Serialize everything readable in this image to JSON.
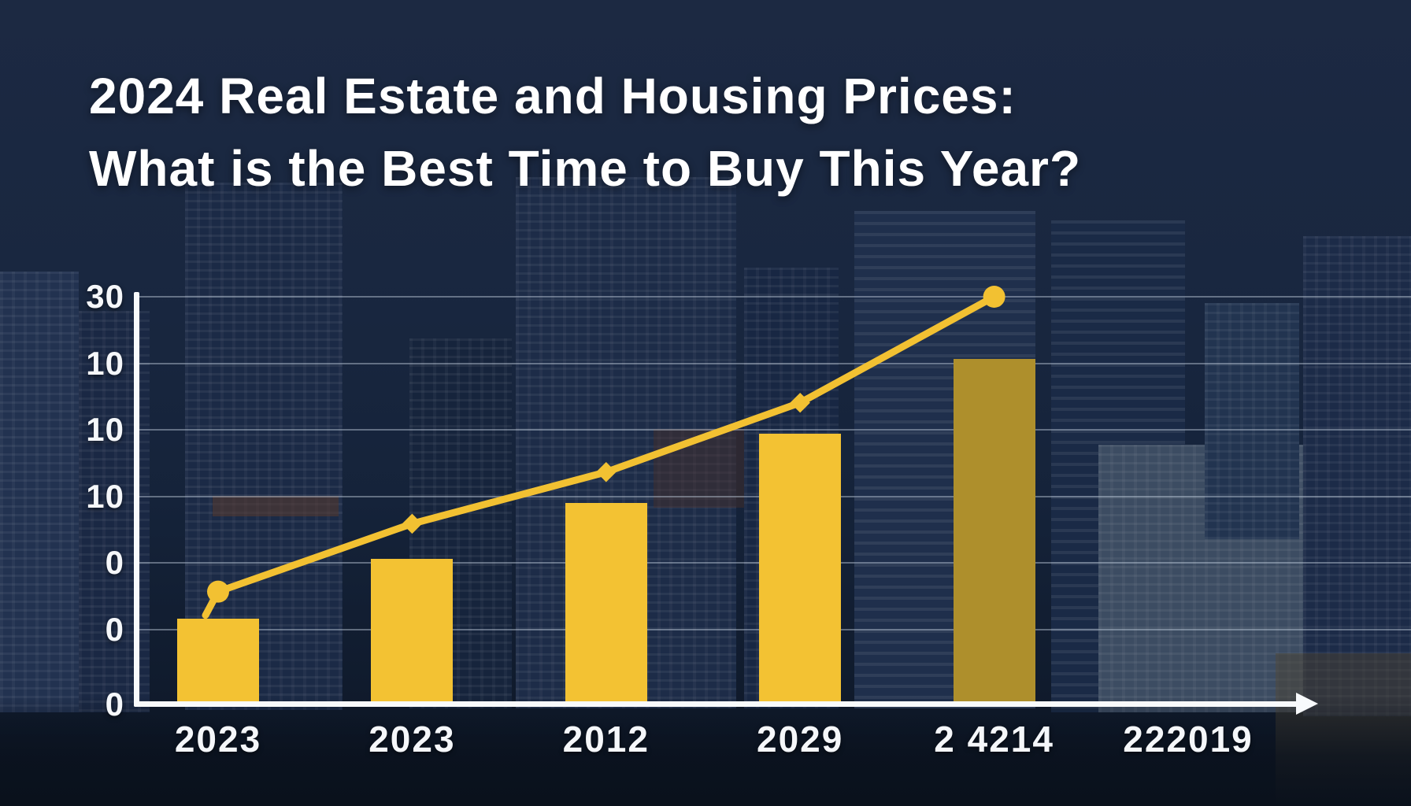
{
  "title": {
    "line1": "2024 Real Estate and Housing Prices:",
    "line2": "What is the Best Time to Buy This Year?"
  },
  "chart_data": {
    "type": "bar+line",
    "title": "2024 Real Estate and Housing Prices: What is the Best Time to Buy This Year?",
    "categories": [
      "2023",
      "2023",
      "2012",
      "2029",
      "2 4214",
      "222019"
    ],
    "series": [
      {
        "name": "housing-price-bars",
        "type": "bar",
        "values": [
          6.2,
          10.6,
          14.7,
          19.8,
          25.3,
          null
        ]
      },
      {
        "name": "price-trend-line",
        "type": "line",
        "values": [
          8.3,
          13.3,
          17.1,
          22.2,
          30.0,
          null
        ]
      }
    ],
    "xlabel": "",
    "ylabel": "",
    "ylim": [
      0,
      30
    ],
    "y_tick_labels": [
      "30",
      "10",
      "10",
      "10",
      "0",
      "0",
      "0"
    ],
    "grid": true,
    "legend": "none",
    "bar_colors": [
      "#f3c233",
      "#f3c233",
      "#f3c233",
      "#f3c233",
      "#ae8f2c"
    ],
    "colors": {
      "bar": "#f3c233",
      "bar_muted": "#ae8f2c",
      "line": "#f2c132",
      "axis": "#f8fafc",
      "grid": "#cddae8",
      "label": "#f5f7fa",
      "background": "#192740"
    }
  }
}
